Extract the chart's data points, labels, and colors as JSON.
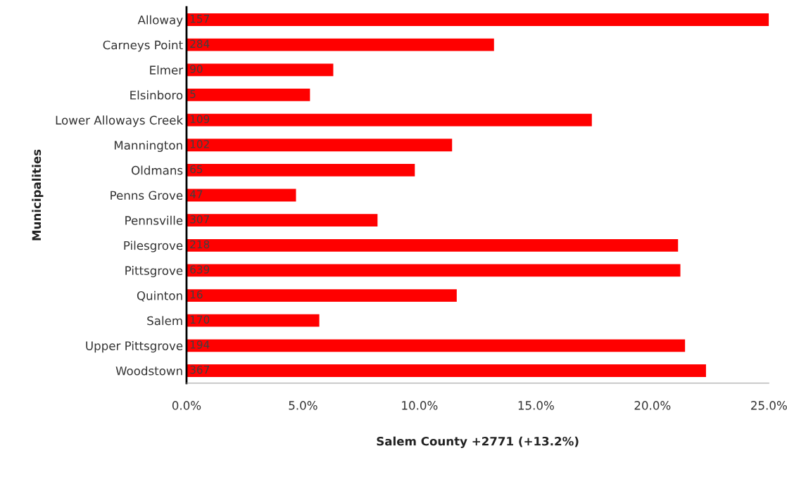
{
  "chart_data": {
    "type": "bar",
    "orientation": "horizontal",
    "xlabel": "Salem County +2771 (+13.2%)",
    "ylabel": "Municipalities",
    "categories": [
      "Alloway",
      "Carneys Point",
      "Elmer",
      "Elsinboro",
      "Lower Alloways Creek",
      "Mannington",
      "Oldmans",
      "Penns Grove",
      "Pennsville",
      "Pilesgrove",
      "Pittsgrove",
      "Quinton",
      "Salem",
      "Upper Pittsgrove",
      "Woodstown"
    ],
    "values": [
      25.0,
      13.2,
      6.3,
      5.3,
      17.4,
      11.4,
      9.8,
      4.7,
      8.2,
      21.1,
      21.2,
      11.6,
      5.7,
      21.4,
      22.3
    ],
    "annotations": [
      "157",
      "284",
      "90",
      "5",
      "109",
      "102",
      "65",
      "47",
      "307",
      "218",
      "639",
      "16",
      "170",
      "194",
      "367"
    ],
    "color": "#ff0000",
    "xlim": [
      0,
      25
    ],
    "xticks": [
      {
        "value": 0,
        "label": "0.0%"
      },
      {
        "value": 5,
        "label": "5.0%"
      },
      {
        "value": 10,
        "label": "10.0%"
      },
      {
        "value": 15,
        "label": "15.0%"
      },
      {
        "value": 20,
        "label": "20.0%"
      },
      {
        "value": 25,
        "label": "25.0%"
      }
    ],
    "grid": false,
    "legend": false
  }
}
